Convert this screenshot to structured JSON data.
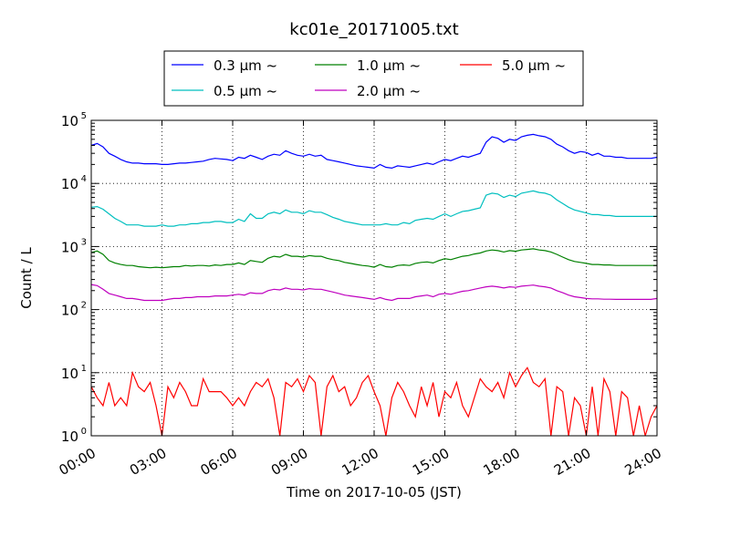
{
  "chart_data": {
    "type": "line",
    "title": "kc01e_20171005.txt",
    "xlabel": "Time on 2017-10-05 (JST)",
    "ylabel": "Count / L",
    "yscale": "log",
    "ylim": [
      1,
      100000
    ],
    "xlim": [
      "00:00",
      "24:00"
    ],
    "grid": true,
    "legend_position": "top",
    "xticks": [
      "00:00",
      "03:00",
      "06:00",
      "09:00",
      "12:00",
      "15:00",
      "18:00",
      "21:00",
      "24:00"
    ],
    "yticks": [
      {
        "base": "10",
        "exp": "0"
      },
      {
        "base": "10",
        "exp": "1"
      },
      {
        "base": "10",
        "exp": "2"
      },
      {
        "base": "10",
        "exp": "3"
      },
      {
        "base": "10",
        "exp": "4"
      },
      {
        "base": "10",
        "exp": "5"
      }
    ],
    "x": [
      "00:00",
      "00:15",
      "00:30",
      "00:45",
      "01:00",
      "01:15",
      "01:30",
      "01:45",
      "02:00",
      "02:15",
      "02:30",
      "02:45",
      "03:00",
      "03:15",
      "03:30",
      "03:45",
      "04:00",
      "04:15",
      "04:30",
      "04:45",
      "05:00",
      "05:15",
      "05:30",
      "05:45",
      "06:00",
      "06:15",
      "06:30",
      "06:45",
      "07:00",
      "07:15",
      "07:30",
      "07:45",
      "08:00",
      "08:15",
      "08:30",
      "08:45",
      "09:00",
      "09:15",
      "09:30",
      "09:45",
      "10:00",
      "10:15",
      "10:30",
      "10:45",
      "11:00",
      "11:15",
      "11:30",
      "11:45",
      "12:00",
      "12:15",
      "12:30",
      "12:45",
      "13:00",
      "13:15",
      "13:30",
      "13:45",
      "14:00",
      "14:15",
      "14:30",
      "14:45",
      "15:00",
      "15:15",
      "15:30",
      "15:45",
      "16:00",
      "16:15",
      "16:30",
      "16:45",
      "17:00",
      "17:15",
      "17:30",
      "17:45",
      "18:00",
      "18:15",
      "18:30",
      "18:45",
      "19:00",
      "19:15",
      "19:30",
      "19:45",
      "20:00",
      "20:15",
      "20:30",
      "20:45",
      "21:00",
      "21:15",
      "21:30",
      "21:45",
      "22:00",
      "22:15",
      "22:30",
      "22:45",
      "23:00",
      "23:15",
      "23:30",
      "23:45",
      "24:00"
    ],
    "series": [
      {
        "name": "0.3 μm ~",
        "color": "#0000ff",
        "values": [
          40000,
          43000,
          38000,
          30000,
          27000,
          24000,
          22000,
          21000,
          21000,
          20500,
          20500,
          20500,
          20000,
          20000,
          20500,
          21000,
          21000,
          21500,
          22000,
          22500,
          24000,
          25000,
          24500,
          24000,
          23000,
          26000,
          25000,
          28000,
          26000,
          24000,
          27000,
          29000,
          28000,
          33000,
          30000,
          28000,
          27000,
          29000,
          27000,
          28000,
          24000,
          23000,
          22000,
          21000,
          20000,
          19000,
          18500,
          18000,
          17500,
          20000,
          18000,
          17500,
          19000,
          18500,
          18000,
          19000,
          20000,
          21000,
          20000,
          22000,
          24000,
          23000,
          25000,
          27000,
          26000,
          28000,
          30000,
          45000,
          55000,
          52000,
          45000,
          50000,
          48000,
          55000,
          58000,
          60000,
          57000,
          55000,
          50000,
          42000,
          38000,
          33000,
          30000,
          32000,
          31000,
          28000,
          30000,
          27000,
          27000,
          26000,
          26000,
          25000,
          25000,
          25000,
          25000,
          25000,
          26000
        ]
      },
      {
        "name": "0.5 μm ~",
        "color": "#00bfbf",
        "values": [
          4200,
          4300,
          3900,
          3300,
          2800,
          2500,
          2200,
          2200,
          2200,
          2100,
          2100,
          2100,
          2200,
          2100,
          2100,
          2200,
          2200,
          2300,
          2300,
          2400,
          2400,
          2500,
          2500,
          2400,
          2400,
          2700,
          2500,
          3300,
          2800,
          2800,
          3300,
          3500,
          3300,
          3800,
          3500,
          3500,
          3300,
          3700,
          3500,
          3500,
          3200,
          2900,
          2700,
          2500,
          2400,
          2300,
          2200,
          2200,
          2200,
          2200,
          2300,
          2200,
          2200,
          2400,
          2300,
          2600,
          2700,
          2800,
          2700,
          3000,
          3300,
          3000,
          3300,
          3600,
          3700,
          3900,
          4100,
          6500,
          7000,
          6800,
          6000,
          6500,
          6200,
          7000,
          7300,
          7600,
          7200,
          7000,
          6500,
          5500,
          4800,
          4200,
          3800,
          3600,
          3400,
          3200,
          3200,
          3100,
          3100,
          3000,
          3000,
          3000,
          3000,
          3000,
          3000,
          3000,
          3000
        ]
      },
      {
        "name": "1.0 μm ~",
        "color": "#008000",
        "values": [
          800,
          850,
          750,
          600,
          550,
          520,
          500,
          500,
          480,
          470,
          460,
          470,
          460,
          470,
          480,
          480,
          500,
          490,
          500,
          500,
          490,
          510,
          500,
          520,
          520,
          550,
          520,
          600,
          580,
          560,
          650,
          700,
          680,
          750,
          700,
          700,
          680,
          720,
          700,
          700,
          650,
          620,
          600,
          560,
          540,
          520,
          500,
          490,
          470,
          520,
          480,
          470,
          500,
          510,
          500,
          540,
          560,
          570,
          550,
          600,
          640,
          620,
          660,
          700,
          720,
          760,
          790,
          850,
          880,
          860,
          820,
          860,
          840,
          880,
          900,
          920,
          880,
          860,
          820,
          750,
          680,
          620,
          580,
          560,
          540,
          520,
          520,
          510,
          510,
          500,
          500,
          500,
          500,
          500,
          500,
          500,
          500
        ]
      },
      {
        "name": "2.0 μm ~",
        "color": "#bf00bf",
        "values": [
          250,
          240,
          210,
          180,
          170,
          160,
          150,
          150,
          145,
          140,
          140,
          140,
          140,
          145,
          150,
          150,
          155,
          155,
          160,
          160,
          160,
          165,
          165,
          165,
          170,
          175,
          170,
          185,
          180,
          180,
          200,
          210,
          205,
          220,
          210,
          210,
          205,
          215,
          210,
          210,
          200,
          190,
          180,
          170,
          165,
          160,
          155,
          150,
          145,
          155,
          145,
          140,
          150,
          150,
          150,
          160,
          165,
          170,
          160,
          175,
          180,
          175,
          185,
          195,
          200,
          210,
          220,
          230,
          235,
          230,
          220,
          230,
          225,
          235,
          240,
          245,
          235,
          230,
          220,
          200,
          185,
          170,
          160,
          155,
          150,
          148,
          148,
          146,
          146,
          145,
          145,
          145,
          145,
          145,
          145,
          145,
          150
        ]
      },
      {
        "name": "5.0 μm ~",
        "color": "#ff0000",
        "values": [
          6,
          4,
          3,
          7,
          3,
          4,
          3,
          10,
          6,
          5,
          7,
          3,
          1,
          6,
          4,
          7,
          5,
          3,
          3,
          8,
          5,
          5,
          5,
          4,
          3,
          4,
          3,
          5,
          7,
          6,
          8,
          4,
          1,
          7,
          6,
          8,
          5,
          9,
          7,
          1,
          6,
          9,
          5,
          6,
          3,
          4,
          7,
          9,
          5,
          3,
          1,
          4,
          7,
          5,
          3,
          2,
          6,
          3,
          7,
          2,
          5,
          4,
          7,
          3,
          2,
          4,
          8,
          6,
          5,
          7,
          4,
          10,
          6,
          9,
          12,
          7,
          6,
          8,
          1,
          6,
          5,
          1,
          4,
          3,
          1,
          6,
          1,
          8,
          5,
          1,
          5,
          4,
          1,
          3,
          1,
          2,
          3
        ]
      }
    ]
  }
}
